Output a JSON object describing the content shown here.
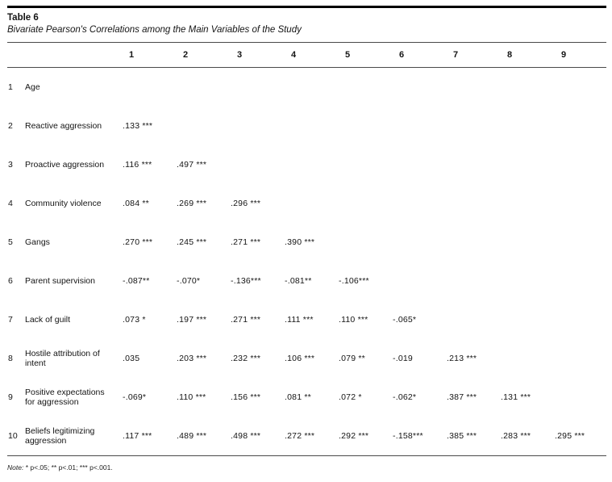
{
  "table": {
    "title": "Table 6",
    "subtitle": "Bivariate Pearson's Correlations among the Main Variables of the Study",
    "columns": [
      "1",
      "2",
      "3",
      "4",
      "5",
      "6",
      "7",
      "8",
      "9"
    ],
    "rows": [
      {
        "num": "1",
        "label": "Age",
        "values": [
          "",
          "",
          "",
          "",
          "",
          "",
          "",
          "",
          ""
        ]
      },
      {
        "num": "2",
        "label": "Reactive aggression",
        "values": [
          ".133 ***",
          "",
          "",
          "",
          "",
          "",
          "",
          "",
          ""
        ]
      },
      {
        "num": "3",
        "label": "Proactive aggression",
        "values": [
          ".116 ***",
          ".497 ***",
          "",
          "",
          "",
          "",
          "",
          "",
          ""
        ]
      },
      {
        "num": "4",
        "label": "Community violence",
        "values": [
          ".084 **",
          ".269 ***",
          ".296 ***",
          "",
          "",
          "",
          "",
          "",
          ""
        ]
      },
      {
        "num": "5",
        "label": "Gangs",
        "values": [
          ".270 ***",
          ".245 ***",
          ".271 ***",
          ".390 ***",
          "",
          "",
          "",
          "",
          ""
        ]
      },
      {
        "num": "6",
        "label": "Parent supervision",
        "values": [
          "-.087**",
          "-.070*",
          "-.136***",
          "-.081**",
          "-.106***",
          "",
          "",
          "",
          ""
        ]
      },
      {
        "num": "7",
        "label": "Lack of guilt",
        "values": [
          ".073 *",
          ".197 ***",
          ".271 ***",
          ".111 ***",
          ".110 ***",
          "-.065*",
          "",
          "",
          ""
        ]
      },
      {
        "num": "8",
        "label": "Hostile attribution of intent",
        "values": [
          ".035",
          ".203 ***",
          ".232 ***",
          ".106 ***",
          ".079 **",
          "-.019",
          ".213 ***",
          "",
          ""
        ]
      },
      {
        "num": "9",
        "label": "Positive expectations for aggression",
        "values": [
          "-.069*",
          ".110 ***",
          ".156 ***",
          ".081 **",
          ".072 *",
          "-.062*",
          ".387 ***",
          ".131 ***",
          ""
        ]
      },
      {
        "num": "10",
        "label": "Beliefs legitimizing aggression",
        "values": [
          ".117 ***",
          ".489 ***",
          ".498 ***",
          ".272 ***",
          ".292 ***",
          "-.158***",
          ".385 ***",
          ".283 ***",
          ".295 ***"
        ]
      }
    ],
    "note_prefix": "Note:",
    "note_text": "* p<.05; ** p<.01; *** p<.001."
  }
}
